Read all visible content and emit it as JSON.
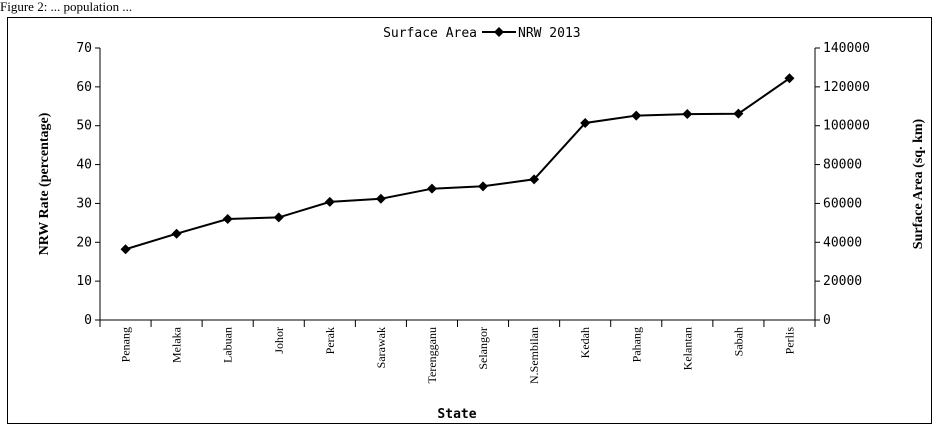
{
  "page": {
    "top_text": "Figure 2: ... population ..."
  },
  "chart_data": {
    "type": "line",
    "xlabel": "State",
    "ylabel_left": "NRW Rate (percentage)",
    "ylabel_right": "Surface Area (sq. km)",
    "left_axis": {
      "ticks": [
        0,
        10,
        20,
        30,
        40,
        50,
        60,
        70
      ],
      "ylim": [
        0,
        70
      ]
    },
    "right_axis": {
      "ticks": [
        0,
        20000,
        40000,
        60000,
        80000,
        100000,
        120000,
        140000
      ],
      "ylim": [
        0,
        140000
      ]
    },
    "legend": {
      "prefix": "Surface Area",
      "entry": "NRW 2013",
      "placement": "top-center"
    },
    "categories": [
      "Penang",
      "Melaka",
      "Labuan",
      "Johor",
      "Perak",
      "Sarawak",
      "Terengganu",
      "Selangor",
      "N.Sembilan",
      "Kedah",
      "Pahang",
      "Kelantan",
      "Sabah",
      "Perlis"
    ],
    "series": [
      {
        "name": "NRW 2013",
        "values": [
          18.2,
          22.2,
          26.0,
          26.4,
          30.4,
          31.2,
          33.8,
          34.4,
          36.2,
          50.7,
          52.6,
          53.0,
          53.1,
          62.2
        ],
        "color": "#000000",
        "marker": "diamond"
      }
    ],
    "grid": false
  }
}
